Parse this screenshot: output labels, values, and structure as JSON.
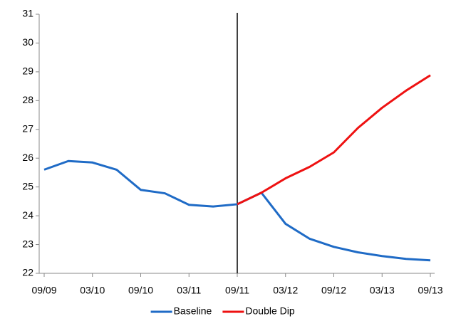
{
  "chart_data": {
    "type": "line",
    "categories": [
      "09/09",
      null,
      "03/10",
      null,
      "09/10",
      null,
      "03/11",
      null,
      "09/11",
      null,
      "03/12",
      null,
      "09/12",
      null,
      "03/13",
      null,
      "09/13"
    ],
    "series": [
      {
        "name": "Baseline",
        "color": "#1f6bc6",
        "values": [
          25.6,
          25.9,
          25.85,
          25.6,
          24.9,
          24.78,
          24.38,
          24.32,
          24.4,
          24.8,
          23.72,
          23.2,
          22.92,
          22.73,
          22.6,
          22.5,
          22.45
        ]
      },
      {
        "name": "Double Dip",
        "color": "#ee1111",
        "values": [
          null,
          null,
          null,
          null,
          null,
          null,
          null,
          null,
          24.4,
          24.8,
          25.3,
          25.7,
          26.2,
          27.05,
          27.75,
          28.35,
          28.88
        ]
      }
    ],
    "ylim": [
      22,
      31
    ],
    "yticks": [
      22,
      23,
      24,
      25,
      26,
      27,
      28,
      29,
      30,
      31
    ],
    "vline": "09/11",
    "grid": false,
    "legend": "bottom"
  }
}
